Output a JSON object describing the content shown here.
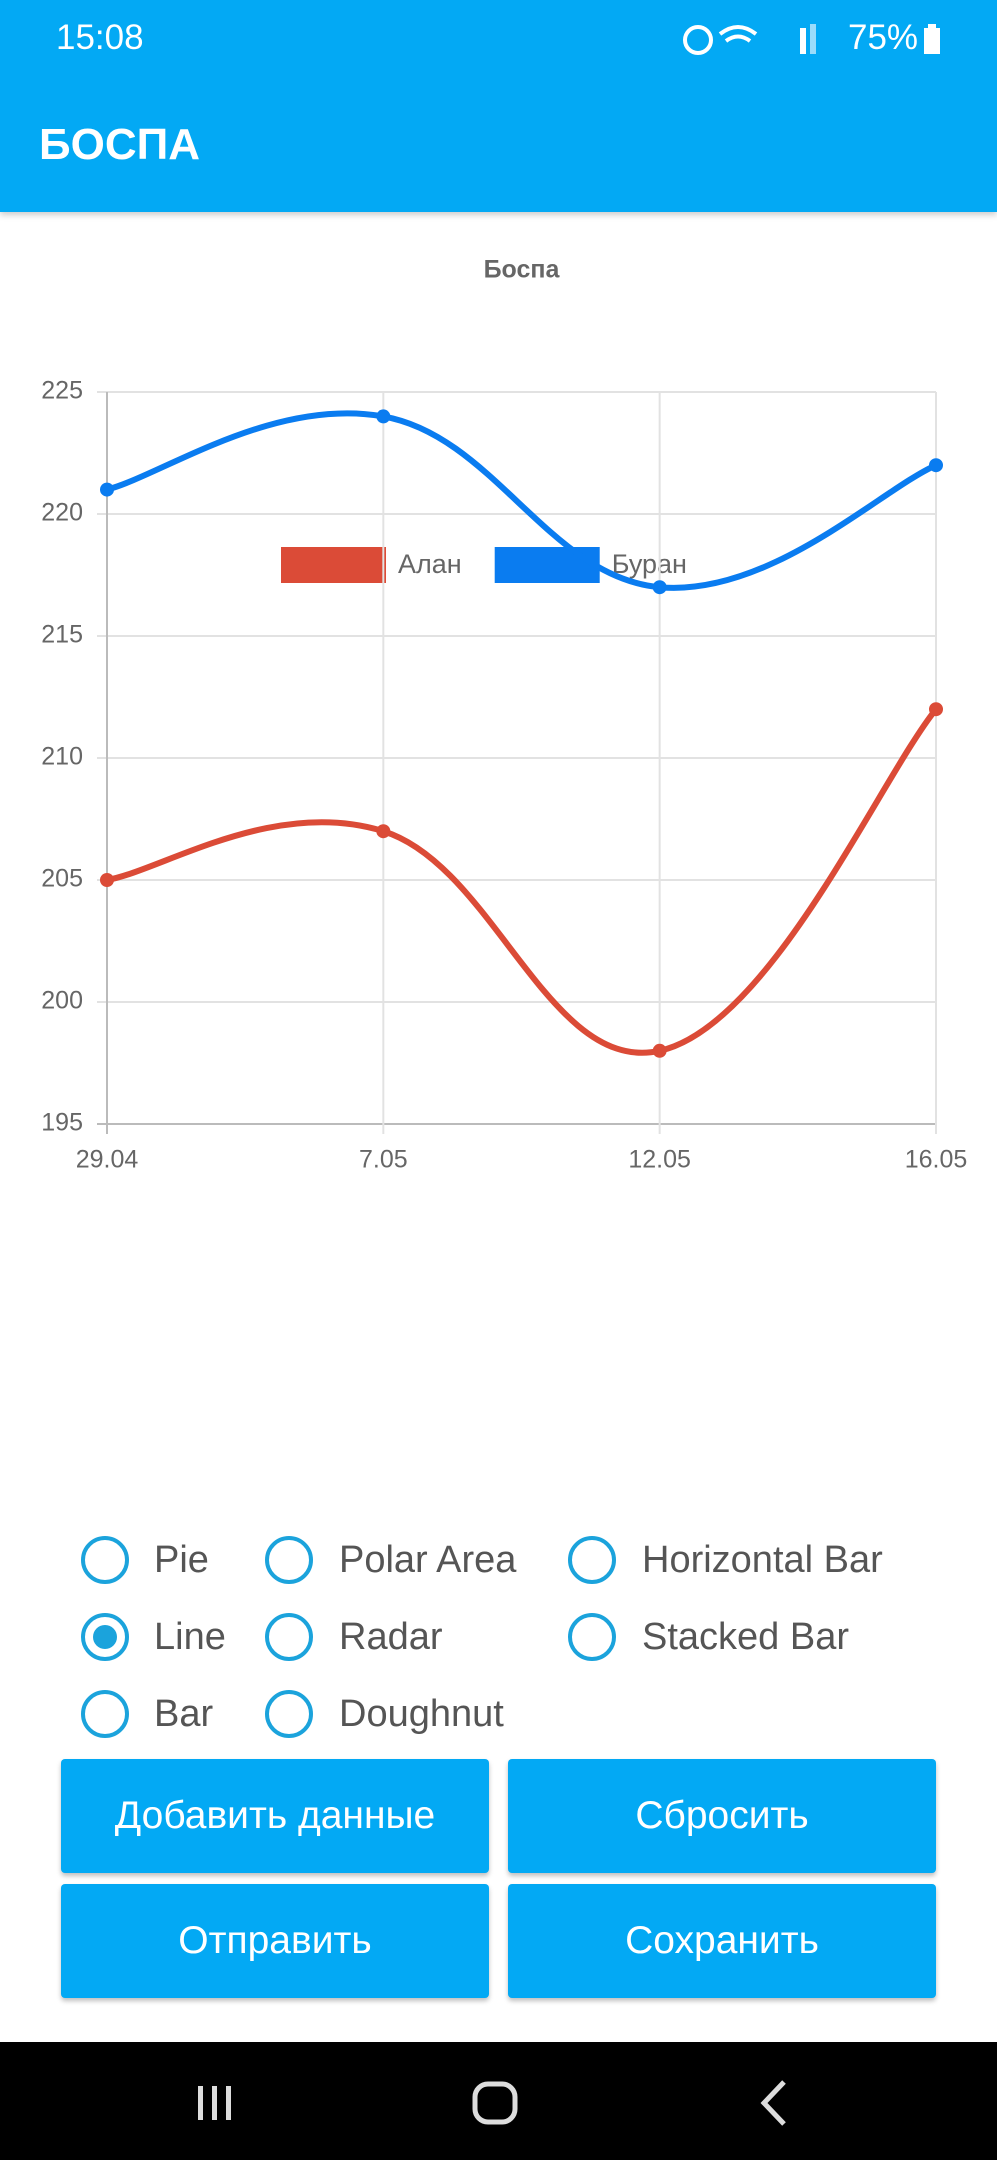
{
  "status_bar": {
    "time": "15:08",
    "battery": "75%"
  },
  "app_bar": {
    "title": "БОСПА"
  },
  "chart_data": {
    "type": "line",
    "title": "Боспа",
    "categories": [
      "29.04",
      "7.05",
      "12.05",
      "16.05"
    ],
    "series": [
      {
        "name": "Алан",
        "color": "#db4b37",
        "values": [
          205,
          207,
          198,
          212
        ]
      },
      {
        "name": "Буран",
        "color": "#0a7cf0",
        "values": [
          221,
          224,
          217,
          222
        ]
      }
    ],
    "ylim": [
      195,
      225
    ],
    "yticks": [
      195,
      200,
      205,
      210,
      215,
      220,
      225
    ],
    "grid": true,
    "legend": "top"
  },
  "chart_types": {
    "options": [
      "Pie",
      "Polar Area",
      "Horizontal Bar",
      "Line",
      "Radar",
      "Stacked Bar",
      "Bar",
      "Doughnut"
    ],
    "selected": 3
  },
  "buttons": [
    "Добавить данные",
    "Сбросить",
    "Отправить",
    "Сохранить"
  ]
}
